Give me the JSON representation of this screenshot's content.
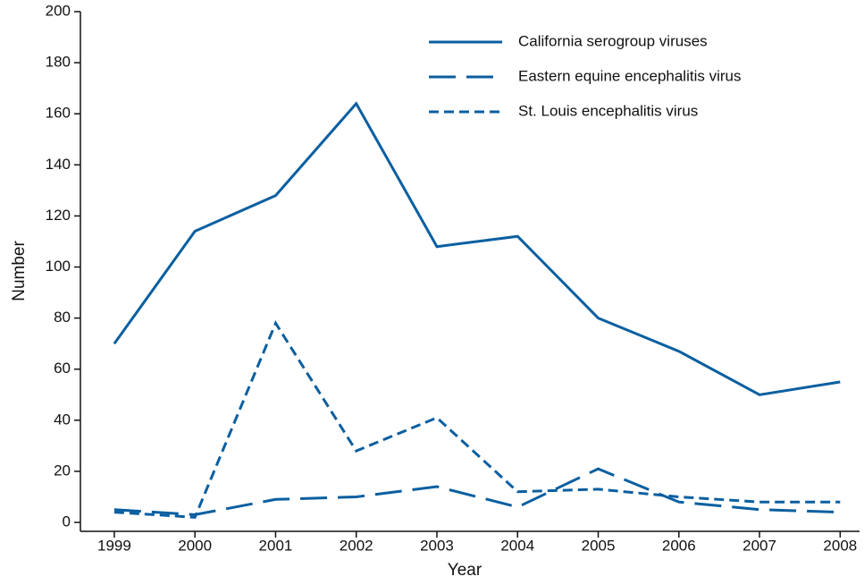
{
  "chart_data": {
    "type": "line",
    "x_label": "Year",
    "y_label": "Number",
    "x": [
      1999,
      2000,
      2001,
      2002,
      2003,
      2004,
      2005,
      2006,
      2007,
      2008
    ],
    "xlim": [
      1998.58,
      2008.24
    ],
    "xticks": [
      1999,
      2000,
      2001,
      2002,
      2003,
      2004,
      2005,
      2006,
      2007,
      2008
    ],
    "ylim": [
      -3.5,
      200
    ],
    "yticks": [
      0,
      20,
      40,
      60,
      80,
      100,
      120,
      140,
      160,
      180,
      200
    ],
    "legend": "upper right",
    "series": [
      {
        "name": "California serogroup viruses",
        "color": "#0a5fa0",
        "style": "solid",
        "values": [
          70,
          114,
          128,
          164,
          108,
          112,
          80,
          67,
          50,
          55
        ]
      },
      {
        "name": "Eastern equine encephalitis virus",
        "color": "#0a5fa0",
        "style": "dashed",
        "values": [
          5,
          3,
          9,
          10,
          14,
          6,
          21,
          8,
          5,
          4
        ]
      },
      {
        "name": "St. Louis encephalitis virus",
        "color": "#0a5fa0",
        "style": "dotted",
        "values": [
          4,
          2,
          78,
          28,
          41,
          12,
          13,
          10,
          8,
          8
        ]
      }
    ]
  }
}
